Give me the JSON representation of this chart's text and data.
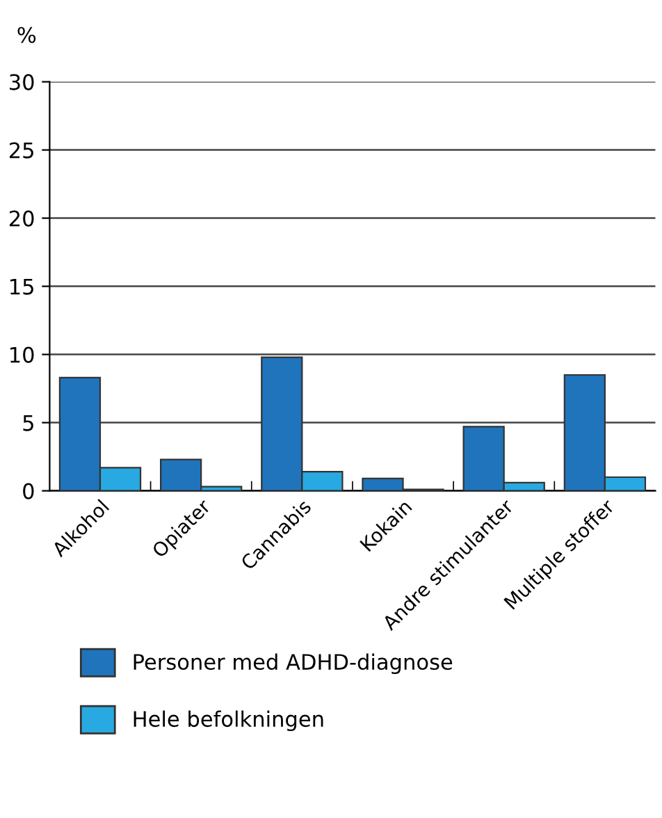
{
  "chart_data": {
    "type": "bar",
    "ylabel": "%",
    "categories": [
      "Alkohol",
      "Opiater",
      "Cannabis",
      "Kokain",
      "Andre stimulanter",
      "Multiple stoffer"
    ],
    "series": [
      {
        "name": "Personer med ADHD-diagnose",
        "color": "#1f74bb",
        "values": [
          8.3,
          2.3,
          9.8,
          0.9,
          4.7,
          8.5
        ]
      },
      {
        "name": "Hele befolkningen",
        "color": "#29a9e1",
        "values": [
          1.7,
          0.3,
          1.4,
          0.1,
          0.6,
          1.0
        ]
      }
    ],
    "ylim": [
      0,
      30
    ],
    "yticks": [
      0,
      5,
      10,
      15,
      20,
      25,
      30
    ],
    "grid": "y",
    "legend": "bottom left"
  }
}
